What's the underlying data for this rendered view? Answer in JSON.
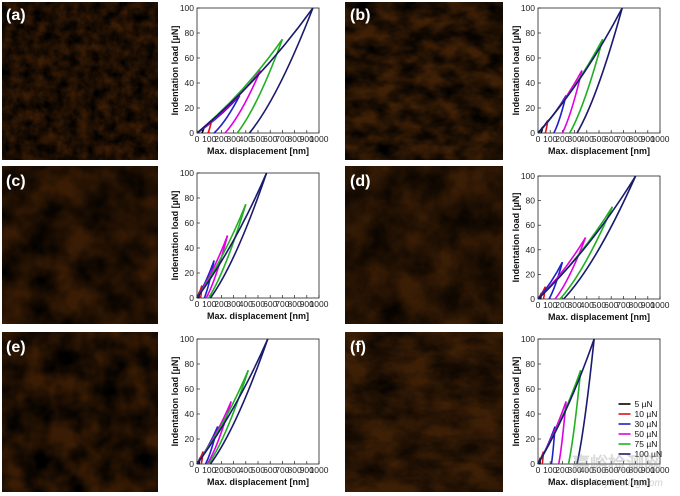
{
  "colors": {
    "load_5": "#000000",
    "load_10": "#e0101a",
    "load_30": "#2020c8",
    "load_50": "#e000e0",
    "load_75": "#22b022",
    "load_100": "#1a1a6e"
  },
  "watermark": {
    "main": "嘉峪检测网",
    "sub": "AnyTesting.com"
  },
  "chart_data": [
    {
      "panel": "(a)",
      "type": "line",
      "xlabel": "Max. displacement [nm]",
      "ylabel": "Indentation load [µN]",
      "xlim": [
        0,
        1000
      ],
      "ylim": [
        0,
        100
      ],
      "xticks": [
        "0",
        "100",
        "200",
        "300",
        "400",
        "500",
        "600",
        "700",
        "800",
        "900",
        "1000"
      ],
      "yticks": [
        "0",
        "20",
        "40",
        "60",
        "80",
        "100"
      ],
      "series": [
        {
          "name": "5 µN",
          "color": "load_5",
          "loading": [
            [
              0,
              0
            ],
            [
              60,
              5
            ]
          ],
          "unloading": [
            [
              60,
              5
            ],
            [
              40,
              0
            ]
          ]
        },
        {
          "name": "10 µN",
          "color": "load_10",
          "loading": [
            [
              0,
              0
            ],
            [
              120,
              10
            ]
          ],
          "unloading": [
            [
              120,
              10
            ],
            [
              90,
              0
            ]
          ]
        },
        {
          "name": "30 µN",
          "color": "load_30",
          "loading": [
            [
              0,
              0
            ],
            [
              350,
              30
            ]
          ],
          "unloading": [
            [
              350,
              30
            ],
            [
              140,
              0
            ]
          ]
        },
        {
          "name": "50 µN",
          "color": "load_50",
          "loading": [
            [
              0,
              0
            ],
            [
              520,
              50
            ]
          ],
          "unloading": [
            [
              520,
              50
            ],
            [
              230,
              0
            ]
          ]
        },
        {
          "name": "75 µN",
          "color": "load_75",
          "loading": [
            [
              0,
              0
            ],
            [
              700,
              75
            ]
          ],
          "unloading": [
            [
              700,
              75
            ],
            [
              330,
              0
            ]
          ]
        },
        {
          "name": "100 µN",
          "color": "load_100",
          "loading": [
            [
              0,
              0
            ],
            [
              950,
              100
            ]
          ],
          "unloading": [
            [
              950,
              100
            ],
            [
              430,
              0
            ]
          ]
        }
      ]
    },
    {
      "panel": "(b)",
      "type": "line",
      "xlabel": "Max. displacement [nm]",
      "ylabel": "Indentation load [µN]",
      "xlim": [
        0,
        1000
      ],
      "ylim": [
        0,
        100
      ],
      "xticks": [
        "0",
        "100",
        "200",
        "300",
        "400",
        "500",
        "600",
        "700",
        "800",
        "900",
        "1000"
      ],
      "yticks": [
        "0",
        "20",
        "40",
        "60",
        "80",
        "100"
      ],
      "series": [
        {
          "name": "5 µN",
          "color": "load_5",
          "loading": [
            [
              0,
              0
            ],
            [
              40,
              5
            ]
          ],
          "unloading": [
            [
              40,
              5
            ],
            [
              25,
              0
            ]
          ]
        },
        {
          "name": "10 µN",
          "color": "load_10",
          "loading": [
            [
              0,
              0
            ],
            [
              80,
              10
            ]
          ],
          "unloading": [
            [
              80,
              10
            ],
            [
              60,
              0
            ]
          ]
        },
        {
          "name": "30 µN",
          "color": "load_30",
          "loading": [
            [
              0,
              0
            ],
            [
              230,
              30
            ]
          ],
          "unloading": [
            [
              230,
              30
            ],
            [
              130,
              0
            ]
          ]
        },
        {
          "name": "50 µN",
          "color": "load_50",
          "loading": [
            [
              0,
              0
            ],
            [
              360,
              50
            ]
          ],
          "unloading": [
            [
              360,
              50
            ],
            [
              200,
              0
            ]
          ]
        },
        {
          "name": "75 µN",
          "color": "load_75",
          "loading": [
            [
              0,
              0
            ],
            [
              530,
              75
            ]
          ],
          "unloading": [
            [
              530,
              75
            ],
            [
              260,
              0
            ]
          ]
        },
        {
          "name": "100 µN",
          "color": "load_100",
          "loading": [
            [
              0,
              0
            ],
            [
              690,
              100
            ]
          ],
          "unloading": [
            [
              690,
              100
            ],
            [
              320,
              0
            ]
          ]
        }
      ]
    },
    {
      "panel": "(c)",
      "type": "line",
      "xlabel": "Max. displacement [nm]",
      "ylabel": "Indentation load [µN]",
      "xlim": [
        0,
        1000
      ],
      "ylim": [
        0,
        100
      ],
      "xticks": [
        "0",
        "100",
        "200",
        "300",
        "400",
        "500",
        "600",
        "700",
        "800",
        "900",
        "1000"
      ],
      "yticks": [
        "0",
        "20",
        "40",
        "60",
        "80",
        "100"
      ],
      "series": [
        {
          "name": "5 µN",
          "color": "load_5",
          "loading": [
            [
              0,
              0
            ],
            [
              20,
              5
            ]
          ],
          "unloading": [
            [
              20,
              5
            ],
            [
              15,
              0
            ]
          ]
        },
        {
          "name": "10 µN",
          "color": "load_10",
          "loading": [
            [
              0,
              0
            ],
            [
              40,
              10
            ]
          ],
          "unloading": [
            [
              40,
              10
            ],
            [
              30,
              0
            ]
          ]
        },
        {
          "name": "30 µN",
          "color": "load_30",
          "loading": [
            [
              0,
              0
            ],
            [
              140,
              30
            ]
          ],
          "unloading": [
            [
              140,
              30
            ],
            [
              60,
              0
            ]
          ]
        },
        {
          "name": "50 µN",
          "color": "load_50",
          "loading": [
            [
              0,
              0
            ],
            [
              250,
              50
            ]
          ],
          "unloading": [
            [
              250,
              50
            ],
            [
              75,
              0
            ]
          ]
        },
        {
          "name": "75 µN",
          "color": "load_75",
          "loading": [
            [
              0,
              0
            ],
            [
              400,
              75
            ]
          ],
          "unloading": [
            [
              400,
              75
            ],
            [
              95,
              0
            ]
          ]
        },
        {
          "name": "100 µN",
          "color": "load_100",
          "loading": [
            [
              0,
              0
            ],
            [
              570,
              100
            ]
          ],
          "unloading": [
            [
              570,
              100
            ],
            [
              110,
              0
            ]
          ]
        }
      ]
    },
    {
      "panel": "(d)",
      "type": "line",
      "xlabel": "Max. displacement [nm]",
      "ylabel": "Indentation load [µN]",
      "xlim": [
        0,
        1000
      ],
      "ylim": [
        0,
        100
      ],
      "xticks": [
        "0",
        "100",
        "200",
        "300",
        "400",
        "500",
        "600",
        "700",
        "800",
        "900",
        "1000"
      ],
      "yticks": [
        "0",
        "20",
        "40",
        "60",
        "80",
        "100"
      ],
      "series": [
        {
          "name": "5 µN",
          "color": "load_5",
          "loading": [
            [
              0,
              0
            ],
            [
              30,
              5
            ]
          ],
          "unloading": [
            [
              30,
              5
            ],
            [
              20,
              0
            ]
          ]
        },
        {
          "name": "10 µN",
          "color": "load_10",
          "loading": [
            [
              0,
              0
            ],
            [
              60,
              10
            ]
          ],
          "unloading": [
            [
              60,
              10
            ],
            [
              45,
              0
            ]
          ]
        },
        {
          "name": "30 µN",
          "color": "load_30",
          "loading": [
            [
              0,
              0
            ],
            [
              200,
              30
            ]
          ],
          "unloading": [
            [
              200,
              30
            ],
            [
              90,
              0
            ]
          ]
        },
        {
          "name": "50 µN",
          "color": "load_50",
          "loading": [
            [
              0,
              0
            ],
            [
              390,
              50
            ]
          ],
          "unloading": [
            [
              390,
              50
            ],
            [
              140,
              0
            ]
          ]
        },
        {
          "name": "75 µN",
          "color": "load_75",
          "loading": [
            [
              0,
              0
            ],
            [
              610,
              75
            ]
          ],
          "unloading": [
            [
              610,
              75
            ],
            [
              180,
              0
            ]
          ]
        },
        {
          "name": "100 µN",
          "color": "load_100",
          "loading": [
            [
              0,
              0
            ],
            [
              800,
              100
            ]
          ],
          "unloading": [
            [
              800,
              100
            ],
            [
              210,
              0
            ]
          ]
        }
      ]
    },
    {
      "panel": "(e)",
      "type": "line",
      "xlabel": "Max. displacement [nm]",
      "ylabel": "Indentation load [µN]",
      "xlim": [
        0,
        1000
      ],
      "ylim": [
        0,
        100
      ],
      "xticks": [
        "0",
        "100",
        "200",
        "300",
        "400",
        "500",
        "600",
        "700",
        "800",
        "900",
        "1000"
      ],
      "yticks": [
        "0",
        "20",
        "40",
        "60",
        "80",
        "100"
      ],
      "series": [
        {
          "name": "5 µN",
          "color": "load_5",
          "loading": [
            [
              0,
              0
            ],
            [
              25,
              5
            ]
          ],
          "unloading": [
            [
              25,
              5
            ],
            [
              15,
              0
            ]
          ]
        },
        {
          "name": "10 µN",
          "color": "load_10",
          "loading": [
            [
              0,
              0
            ],
            [
              50,
              10
            ]
          ],
          "unloading": [
            [
              50,
              10
            ],
            [
              35,
              0
            ]
          ]
        },
        {
          "name": "30 µN",
          "color": "load_30",
          "loading": [
            [
              0,
              0
            ],
            [
              170,
              30
            ]
          ],
          "unloading": [
            [
              170,
              30
            ],
            [
              70,
              0
            ]
          ]
        },
        {
          "name": "50 µN",
          "color": "load_50",
          "loading": [
            [
              0,
              0
            ],
            [
              280,
              50
            ]
          ],
          "unloading": [
            [
              280,
              50
            ],
            [
              85,
              0
            ]
          ]
        },
        {
          "name": "75 µN",
          "color": "load_75",
          "loading": [
            [
              0,
              0
            ],
            [
              420,
              75
            ]
          ],
          "unloading": [
            [
              420,
              75
            ],
            [
              95,
              0
            ]
          ]
        },
        {
          "name": "100 µN",
          "color": "load_100",
          "loading": [
            [
              0,
              0
            ],
            [
              580,
              100
            ]
          ],
          "unloading": [
            [
              580,
              100
            ],
            [
              110,
              0
            ]
          ]
        }
      ]
    },
    {
      "panel": "(f)",
      "type": "line",
      "xlabel": "Max. displacement [nm]",
      "ylabel": "Indentation load [µN]",
      "xlim": [
        0,
        1000
      ],
      "ylim": [
        0,
        100
      ],
      "xticks": [
        "0",
        "100",
        "200",
        "300",
        "400",
        "500",
        "600",
        "700",
        "800",
        "900",
        "1000"
      ],
      "yticks": [
        "0",
        "20",
        "40",
        "60",
        "80",
        "100"
      ],
      "legend": {
        "position": "right",
        "entries": [
          "5 µN",
          "10 µN",
          "30 µN",
          "50 µN",
          "75 µN",
          "100 µN"
        ]
      },
      "series": [
        {
          "name": "5 µN",
          "color": "load_5",
          "loading": [
            [
              0,
              0
            ],
            [
              20,
              5
            ]
          ],
          "unloading": [
            [
              20,
              5
            ],
            [
              15,
              0
            ]
          ]
        },
        {
          "name": "10 µN",
          "color": "load_10",
          "loading": [
            [
              0,
              0
            ],
            [
              45,
              10
            ]
          ],
          "unloading": [
            [
              45,
              10
            ],
            [
              35,
              0
            ]
          ]
        },
        {
          "name": "30 µN",
          "color": "load_30",
          "loading": [
            [
              0,
              0
            ],
            [
              140,
              30
            ]
          ],
          "unloading": [
            [
              140,
              30
            ],
            [
              110,
              0
            ]
          ]
        },
        {
          "name": "50 µN",
          "color": "load_50",
          "loading": [
            [
              0,
              0
            ],
            [
              230,
              50
            ]
          ],
          "unloading": [
            [
              230,
              50
            ],
            [
              170,
              0
            ]
          ]
        },
        {
          "name": "75 µN",
          "color": "load_75",
          "loading": [
            [
              0,
              0
            ],
            [
              350,
              75
            ]
          ],
          "unloading": [
            [
              350,
              75
            ],
            [
              250,
              0
            ]
          ]
        },
        {
          "name": "100 µN",
          "color": "load_100",
          "loading": [
            [
              0,
              0
            ],
            [
              460,
              100
            ]
          ],
          "unloading": [
            [
              460,
              100
            ],
            [
              320,
              0
            ]
          ]
        }
      ]
    }
  ]
}
